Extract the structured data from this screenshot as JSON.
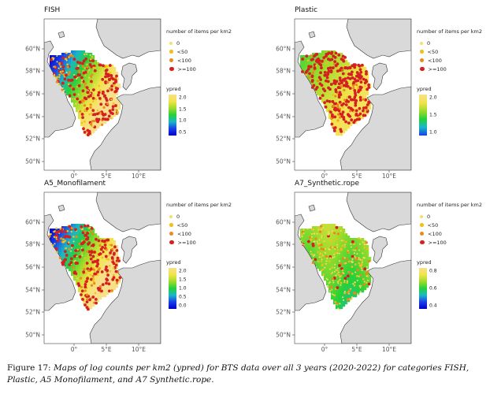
{
  "figure": {
    "caption_label": "Figure 17:",
    "caption_text": "Maps of log counts per km2 (ypred) for BTS data over all 3 years (2020-2022) for categories FISH, Plastic, A5 Monofilament, and A7 Synthetic.rope.",
    "lat_labels": [
      "60°N",
      "58°N",
      "56°N",
      "54°N",
      "52°N",
      "50°N"
    ],
    "lon_labels": [
      "0°",
      "5°E",
      "10°E"
    ],
    "legend_title": "number of items per km2",
    "size_classes": [
      "0",
      "<50",
      "<100",
      ">=100"
    ],
    "size_colors": [
      "#f6de6a",
      "#f0c020",
      "#e98a1a",
      "#d42020"
    ],
    "colorbar_title": "ypred",
    "land_color": "#d9d9d9",
    "panels": [
      {
        "title": "FISH",
        "colorbar_ticks": [
          "2.0",
          "1.5",
          "1.0",
          "0.5"
        ],
        "colorbar_stops": [
          "#f8e08a",
          "#f2e34a",
          "#9edc2a",
          "#25d13a",
          "#19b7c8",
          "#1a3fe8",
          "#0000c8"
        ],
        "pattern": "west-low"
      },
      {
        "title": "Plastic",
        "colorbar_ticks": [
          "2.0",
          "1.5",
          "1.0"
        ],
        "colorbar_stops": [
          "#f8e08a",
          "#f2e34a",
          "#9edc2a",
          "#25d13a",
          "#19b7c8",
          "#1a3fe8"
        ],
        "pattern": "high"
      },
      {
        "title": "A5_Monofilament",
        "colorbar_ticks": [
          "2.0",
          "1.5",
          "1.0",
          "0.5",
          "0.0"
        ],
        "colorbar_stops": [
          "#f8e08a",
          "#f2e34a",
          "#9edc2a",
          "#25d13a",
          "#19b7c8",
          "#1a3fe8",
          "#0000c8"
        ],
        "pattern": "west-low"
      },
      {
        "title": "A7_Synthetic.rope",
        "colorbar_ticks": [
          "0.8",
          "0.6",
          "0.4"
        ],
        "colorbar_stops": [
          "#f8e08a",
          "#f2e34a",
          "#9edc2a",
          "#25d13a",
          "#19b7c8",
          "#1a3fe8",
          "#0000c8"
        ],
        "pattern": "mid"
      }
    ]
  }
}
